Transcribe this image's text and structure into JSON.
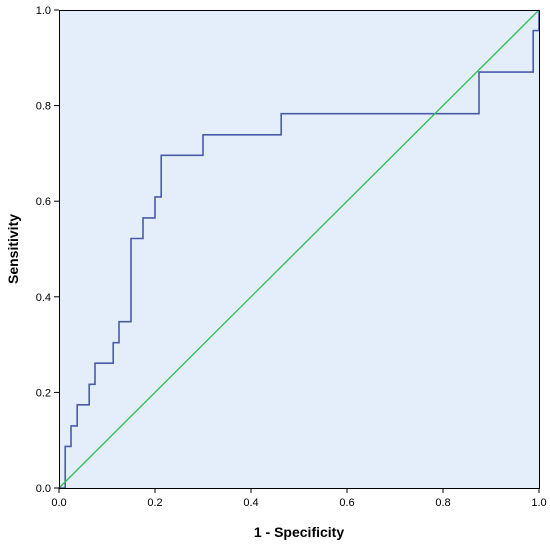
{
  "chart_data": {
    "type": "line",
    "title": "",
    "xlabel": "1 - Specificity",
    "ylabel": "Sensitivity",
    "xlim": [
      0,
      1
    ],
    "ylim": [
      0,
      1
    ],
    "x_ticks": [
      "0.0",
      "0.2",
      "0.4",
      "0.6",
      "0.8",
      "1.0"
    ],
    "y_ticks": [
      "0.0",
      "0.2",
      "0.4",
      "0.6",
      "0.8",
      "1.0"
    ],
    "grid": false,
    "legend": "none",
    "plot_background": "#e4eefb",
    "series": [
      {
        "color": "#4a5ba8",
        "points": [
          [
            0.0,
            0.0
          ],
          [
            0.013,
            0.0
          ],
          [
            0.013,
            0.087
          ],
          [
            0.025,
            0.087
          ],
          [
            0.025,
            0.13
          ],
          [
            0.038,
            0.13
          ],
          [
            0.038,
            0.174
          ],
          [
            0.063,
            0.174
          ],
          [
            0.063,
            0.217
          ],
          [
            0.075,
            0.217
          ],
          [
            0.075,
            0.261
          ],
          [
            0.113,
            0.261
          ],
          [
            0.113,
            0.304
          ],
          [
            0.125,
            0.304
          ],
          [
            0.125,
            0.348
          ],
          [
            0.15,
            0.348
          ],
          [
            0.15,
            0.522
          ],
          [
            0.175,
            0.522
          ],
          [
            0.175,
            0.565
          ],
          [
            0.2,
            0.565
          ],
          [
            0.2,
            0.609
          ],
          [
            0.213,
            0.609
          ],
          [
            0.213,
            0.696
          ],
          [
            0.3,
            0.696
          ],
          [
            0.3,
            0.739
          ],
          [
            0.463,
            0.739
          ],
          [
            0.463,
            0.783
          ],
          [
            0.875,
            0.783
          ],
          [
            0.875,
            0.87
          ],
          [
            0.988,
            0.87
          ],
          [
            0.988,
            0.957
          ],
          [
            1.0,
            0.957
          ],
          [
            1.0,
            1.0
          ]
        ]
      },
      {
        "color": "#33c25a",
        "points": [
          [
            0,
            0
          ],
          [
            1,
            1
          ]
        ]
      }
    ]
  }
}
